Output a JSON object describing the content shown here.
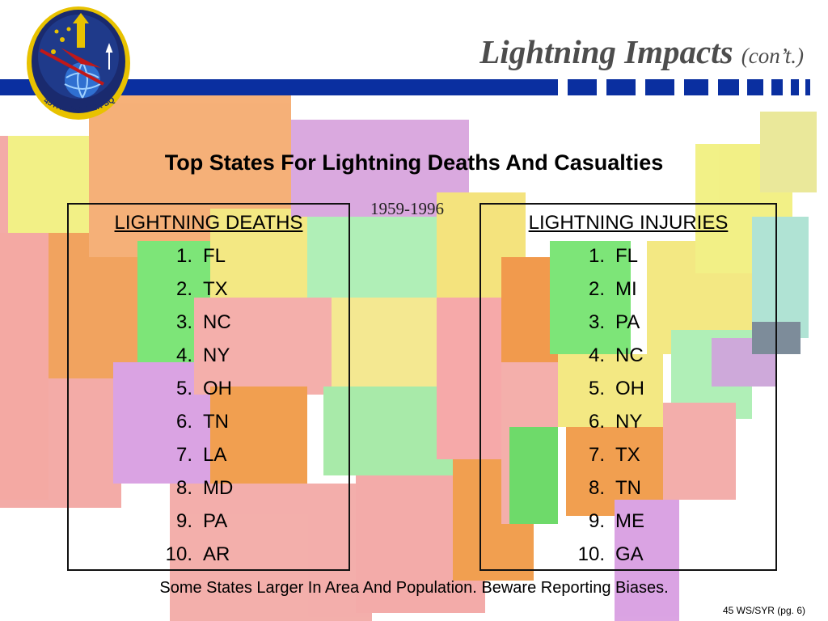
{
  "slide": {
    "title": "Lightning Impacts",
    "title_suffix": "(con’t.)",
    "heading": "Top States For Lightning Deaths And Casualties",
    "years": "1959-1996",
    "note": "Some States Larger In Area And Population.  Beware Reporting Biases.",
    "footer": "45 WS/SYR (pg. 6)",
    "logo_text": "45TH WEATHER SQUADRON"
  },
  "deaths": {
    "header": "LIGHTNING DEATHS",
    "ranks": [
      {
        "num": "1.",
        "state": "FL"
      },
      {
        "num": "2.",
        "state": "TX"
      },
      {
        "num": "3.",
        "state": "NC"
      },
      {
        "num": "4.",
        "state": "NY"
      },
      {
        "num": "5.",
        "state": "OH"
      },
      {
        "num": "6.",
        "state": "TN"
      },
      {
        "num": "7.",
        "state": "LA"
      },
      {
        "num": "8.",
        "state": "MD"
      },
      {
        "num": "9.",
        "state": "PA"
      },
      {
        "num": "10.",
        "state": "AR"
      }
    ]
  },
  "injuries": {
    "header": "LIGHTNING INJURIES",
    "ranks": [
      {
        "num": "1.",
        "state": "FL"
      },
      {
        "num": "2.",
        "state": "MI"
      },
      {
        "num": "3.",
        "state": "PA"
      },
      {
        "num": "4.",
        "state": "NC"
      },
      {
        "num": "5.",
        "state": "OH"
      },
      {
        "num": "6.",
        "state": "NY"
      },
      {
        "num": "7.",
        "state": "TX"
      },
      {
        "num": "8.",
        "state": "TN"
      },
      {
        "num": "9.",
        "state": "ME"
      },
      {
        "num": "10.",
        "state": "GA"
      }
    ]
  },
  "colors": {
    "header_bar": "#0a2fa0",
    "logo_navy": "#1a2a6e",
    "logo_gold": "#e8c200"
  }
}
